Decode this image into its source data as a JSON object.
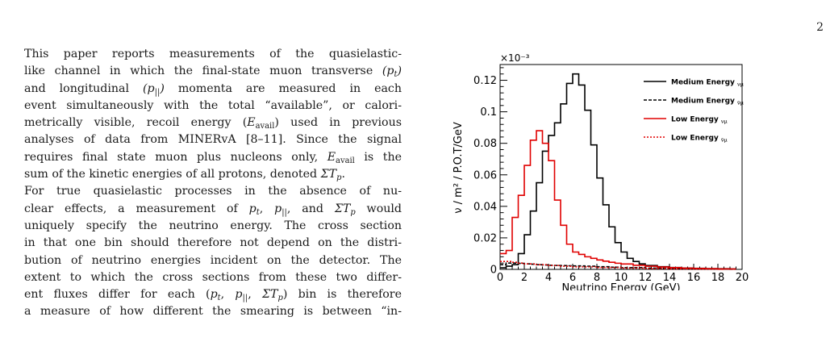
{
  "page": {
    "number": "2"
  },
  "text": {
    "p1": [
      "This paper reports measurements of the quasielastic-",
      "like channel in which the final-state muon transverse ",
      "and longitudinal ",
      "momenta are measured in each",
      "event simultaneously with the total “available”, or calori-",
      "metrically visible, recoil energy (",
      ") used in previous",
      "analyses of data from MINERvA [8–11]. Since the signal",
      "requires final state muon plus nucleons only, ",
      " is the",
      "sum of the kinetic energies of all protons, denoted "
    ],
    "p2": [
      "For true quasielastic processes in the absence of nu-",
      "clear effects, a measurement of ",
      " would",
      "uniquely specify the neutrino energy. The cross section",
      "in that one bin should therefore not depend on the distri-",
      "bution of neutrino energies incident on the detector. The",
      "extent to which the cross sections from these two differ-",
      "ent fluxes differ for each (",
      ") bin is therefore",
      "a measure of how different the smearing is between “in-"
    ]
  },
  "chart_data": {
    "type": "line",
    "exponent_label": "×10⁻³",
    "xlabel": "Neutrino Energy (GeV)",
    "ylabel": "ν / m² / P.O.T/GeV",
    "xlim": [
      0,
      20
    ],
    "ylim": [
      0,
      0.13
    ],
    "x_ticks": [
      0,
      2,
      4,
      6,
      8,
      10,
      12,
      14,
      16,
      18,
      20
    ],
    "x_tick_labels": [
      "0",
      "2",
      "4",
      "6",
      "8",
      "10",
      "12",
      "14",
      "16",
      "18",
      "20"
    ],
    "y_ticks": [
      0,
      0.02,
      0.04,
      0.06,
      0.08,
      0.1,
      0.12
    ],
    "y_tick_labels": [
      "0",
      "0.02",
      "0.04",
      "0.06",
      "0.08",
      "0.1",
      "0.12"
    ],
    "bin_width": 0.5,
    "legend_position": "top-right",
    "series": [
      {
        "name": "Medium Energy",
        "subscript": "νμ",
        "color": "#000000",
        "dash": "solid",
        "x": [
          0,
          0.5,
          1,
          1.5,
          2,
          2.5,
          3,
          3.5,
          4,
          4.5,
          5,
          5.5,
          6,
          6.5,
          7,
          7.5,
          8,
          8.5,
          9,
          9.5,
          10,
          10.5,
          11,
          11.5,
          12,
          13,
          14,
          15,
          16,
          17,
          18,
          19
        ],
        "y": [
          0.001,
          0.002,
          0.003,
          0.01,
          0.022,
          0.037,
          0.055,
          0.075,
          0.085,
          0.093,
          0.105,
          0.118,
          0.124,
          0.117,
          0.101,
          0.079,
          0.058,
          0.041,
          0.027,
          0.017,
          0.011,
          0.007,
          0.005,
          0.0035,
          0.0025,
          0.0017,
          0.0012,
          0.0009,
          0.0007,
          0.0005,
          0.0004,
          0.0003
        ]
      },
      {
        "name": "Medium Energy",
        "subscript": "ν̄μ",
        "color": "#000000",
        "dash": "dashed",
        "x": [
          0,
          0.5,
          1,
          1.5,
          2,
          2.5,
          3,
          3.5,
          4,
          4.5,
          5,
          5.5,
          6,
          7,
          8,
          9,
          10,
          12,
          14,
          16,
          18,
          19
        ],
        "y": [
          0.003,
          0.004,
          0.004,
          0.0038,
          0.0035,
          0.0033,
          0.003,
          0.0028,
          0.0026,
          0.0025,
          0.0024,
          0.0023,
          0.0022,
          0.002,
          0.0017,
          0.0014,
          0.0011,
          0.0008,
          0.0005,
          0.0003,
          0.0002,
          0.0001
        ]
      },
      {
        "name": "Low Energy",
        "subscript": "νμ",
        "color": "#e00000",
        "dash": "solid",
        "x": [
          0,
          0.5,
          1,
          1.5,
          2,
          2.5,
          3,
          3.5,
          4,
          4.5,
          5,
          5.5,
          6,
          6.5,
          7,
          7.5,
          8,
          8.5,
          9,
          9.5,
          10,
          11,
          12,
          13,
          14,
          15,
          16,
          17,
          18,
          19
        ],
        "y": [
          0.01,
          0.012,
          0.033,
          0.047,
          0.066,
          0.082,
          0.088,
          0.08,
          0.069,
          0.044,
          0.028,
          0.016,
          0.011,
          0.0095,
          0.008,
          0.007,
          0.006,
          0.0052,
          0.0045,
          0.0039,
          0.0034,
          0.0026,
          0.002,
          0.0015,
          0.0011,
          0.0008,
          0.0006,
          0.0004,
          0.0003,
          0.0002
        ]
      },
      {
        "name": "Low Energy",
        "subscript": "ν̄μ",
        "color": "#e00000",
        "dash": "dotted",
        "x": [
          0,
          0.5,
          1,
          1.5,
          2,
          3,
          4,
          5,
          6,
          8,
          10,
          12,
          14,
          16,
          18
        ],
        "y": [
          0.005,
          0.005,
          0.0045,
          0.004,
          0.0035,
          0.003,
          0.0025,
          0.002,
          0.0016,
          0.0012,
          0.0008,
          0.0005,
          0.0003,
          0.0002,
          0.0001
        ]
      }
    ]
  }
}
